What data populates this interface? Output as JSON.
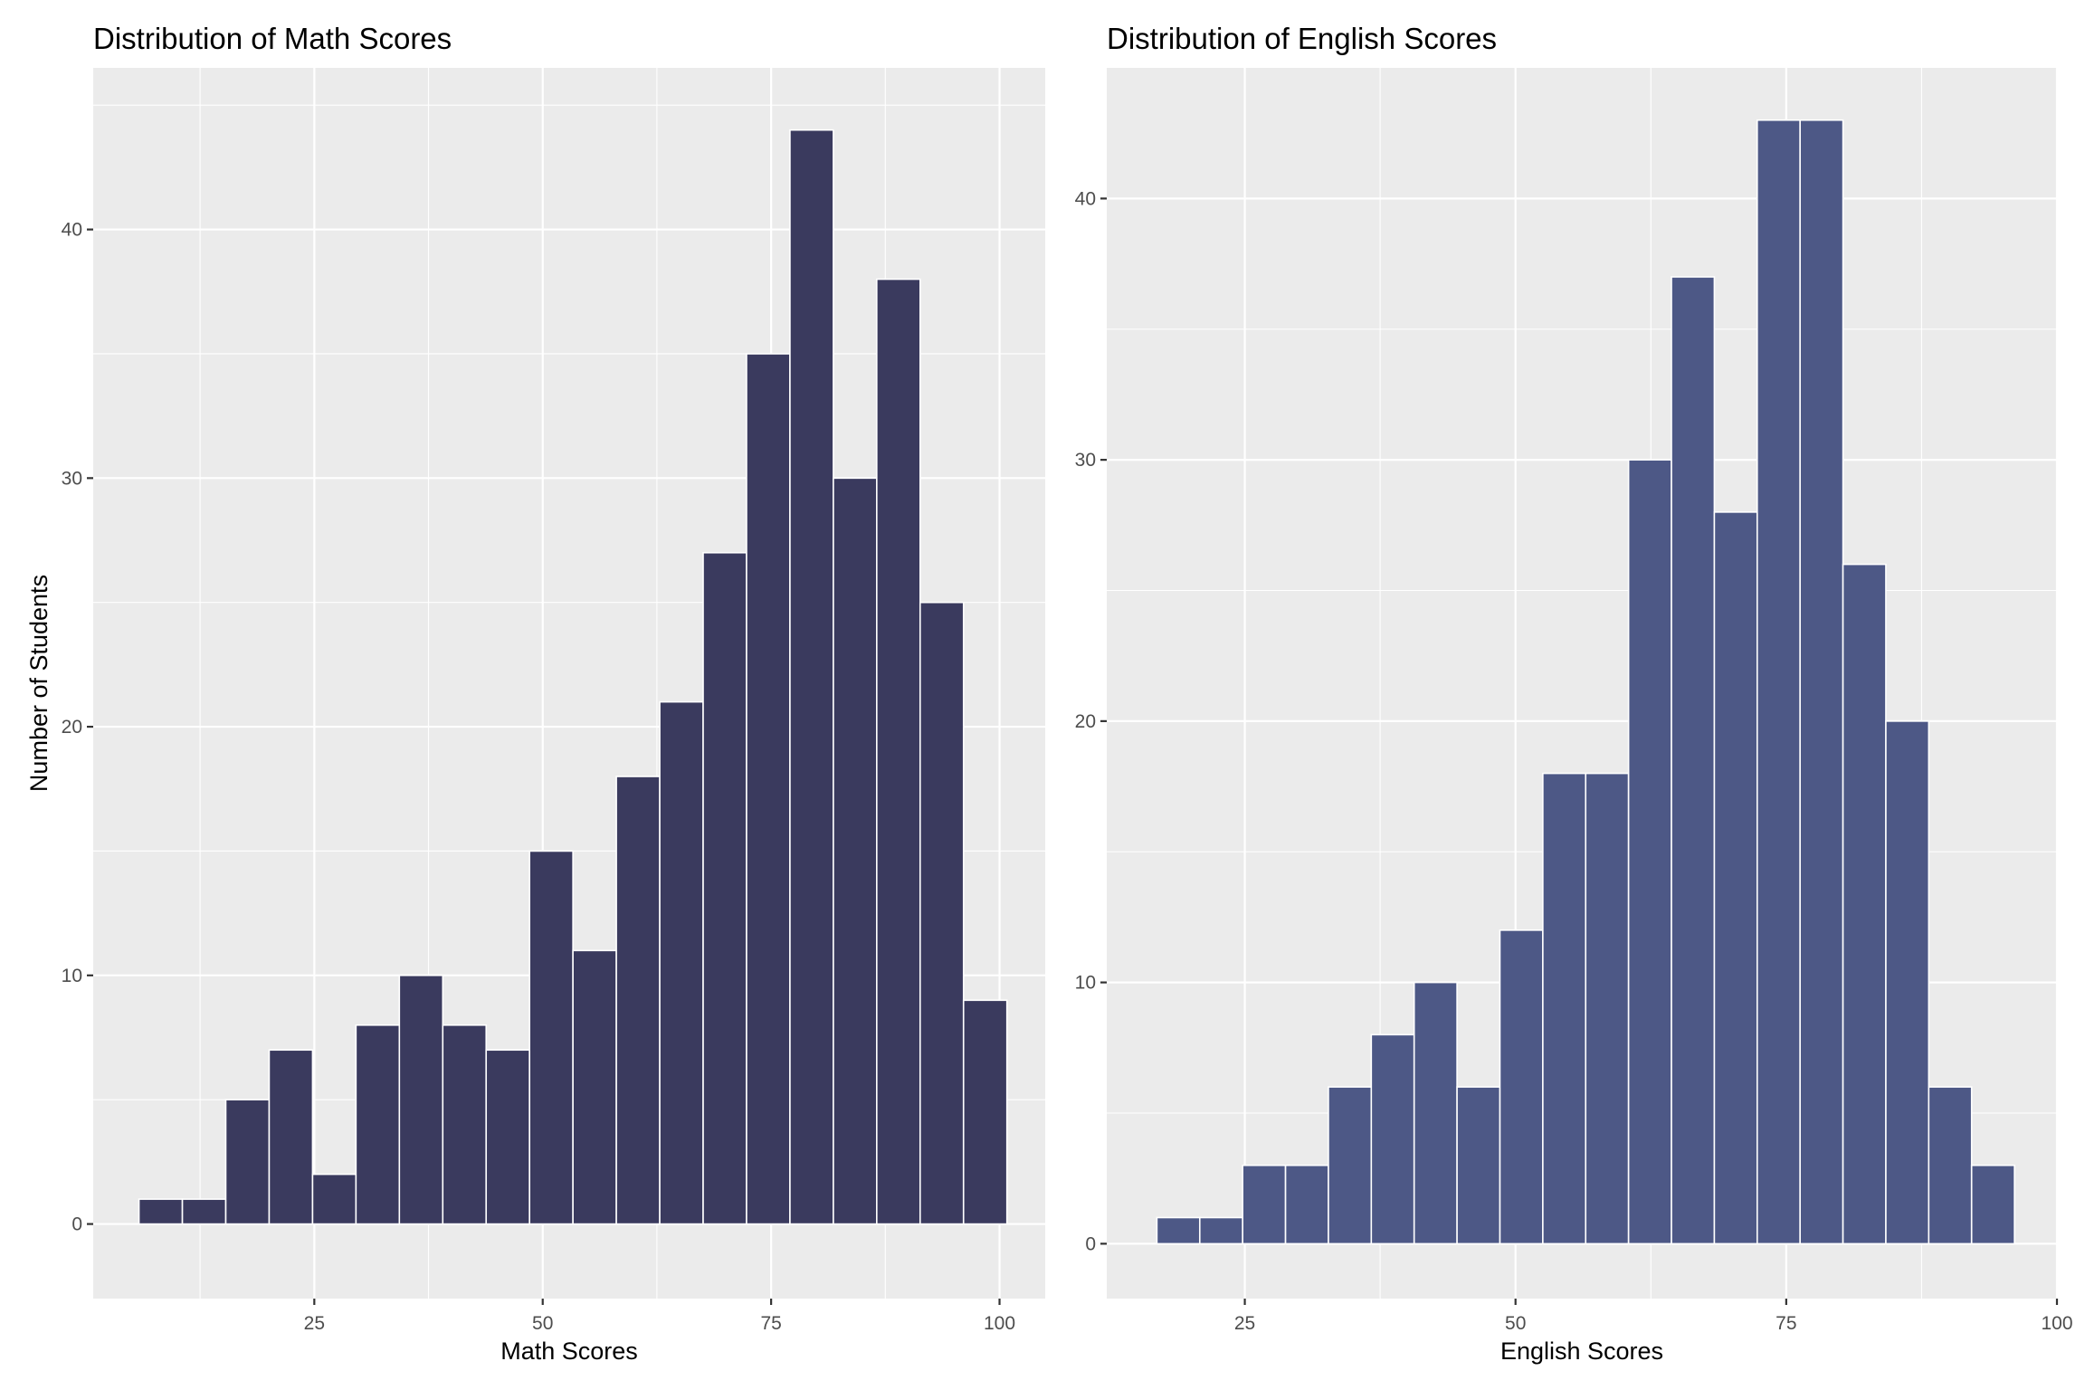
{
  "chart_data": [
    {
      "type": "bar",
      "title": "Distribution of Math Scores",
      "xlabel": "Math Scores",
      "ylabel": "Number of Students",
      "color": "#3a3a5e",
      "grid": true,
      "bin_width": 4.75,
      "bin_start": 5.81,
      "xlim": [
        0.8,
        105.0
      ],
      "ylim": [
        -3.0,
        46.5
      ],
      "x_major_ticks": [
        25,
        50,
        75,
        100
      ],
      "x_minor_ticks": [
        12.5,
        37.5,
        62.5,
        87.5
      ],
      "y_major_ticks": [
        0,
        10,
        20,
        30,
        40
      ],
      "y_minor_ticks": [
        5,
        15,
        25,
        35,
        45
      ],
      "values": [
        1,
        1,
        5,
        7,
        2,
        8,
        10,
        8,
        7,
        15,
        11,
        18,
        21,
        27,
        35,
        44,
        30,
        38,
        25,
        9
      ]
    },
    {
      "type": "bar",
      "title": "Distribution of English Scores",
      "xlabel": "English Scores",
      "ylabel": "",
      "color": "#4d5886",
      "grid": true,
      "bin_width": 3.96,
      "bin_start": 16.88,
      "xlim": [
        12.25,
        100.0
      ],
      "ylim": [
        -2.1,
        45.0
      ],
      "x_major_ticks": [
        25,
        50,
        75,
        100
      ],
      "x_minor_ticks": [
        37.5,
        62.5,
        87.5
      ],
      "y_major_ticks": [
        0,
        10,
        20,
        30,
        40
      ],
      "y_minor_ticks": [
        5,
        15,
        25,
        35
      ],
      "values": [
        1,
        1,
        3,
        3,
        6,
        8,
        10,
        6,
        12,
        18,
        18,
        30,
        37,
        28,
        43,
        43,
        26,
        20,
        6,
        3
      ]
    }
  ]
}
